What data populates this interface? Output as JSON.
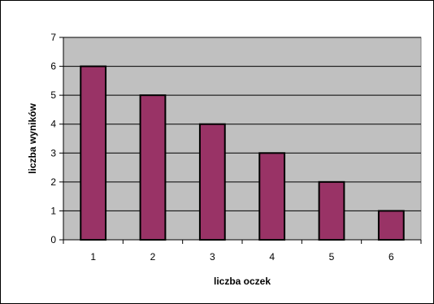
{
  "chart_data": {
    "type": "bar",
    "title": "",
    "xlabel": "liczba oczek",
    "ylabel": "liczba wyników",
    "categories": [
      "1",
      "2",
      "3",
      "4",
      "5",
      "6"
    ],
    "values": [
      6,
      5,
      4,
      3,
      2,
      1
    ],
    "ylim": [
      0,
      7
    ],
    "yticks": [
      "0",
      "1",
      "2",
      "3",
      "4",
      "5",
      "6",
      "7"
    ],
    "grid": true,
    "legend": "none",
    "colors": {
      "bar_fill": "#993366",
      "bar_stroke": "#000000",
      "plot_background": "#c0c0c0",
      "gridline": "#000000"
    }
  }
}
